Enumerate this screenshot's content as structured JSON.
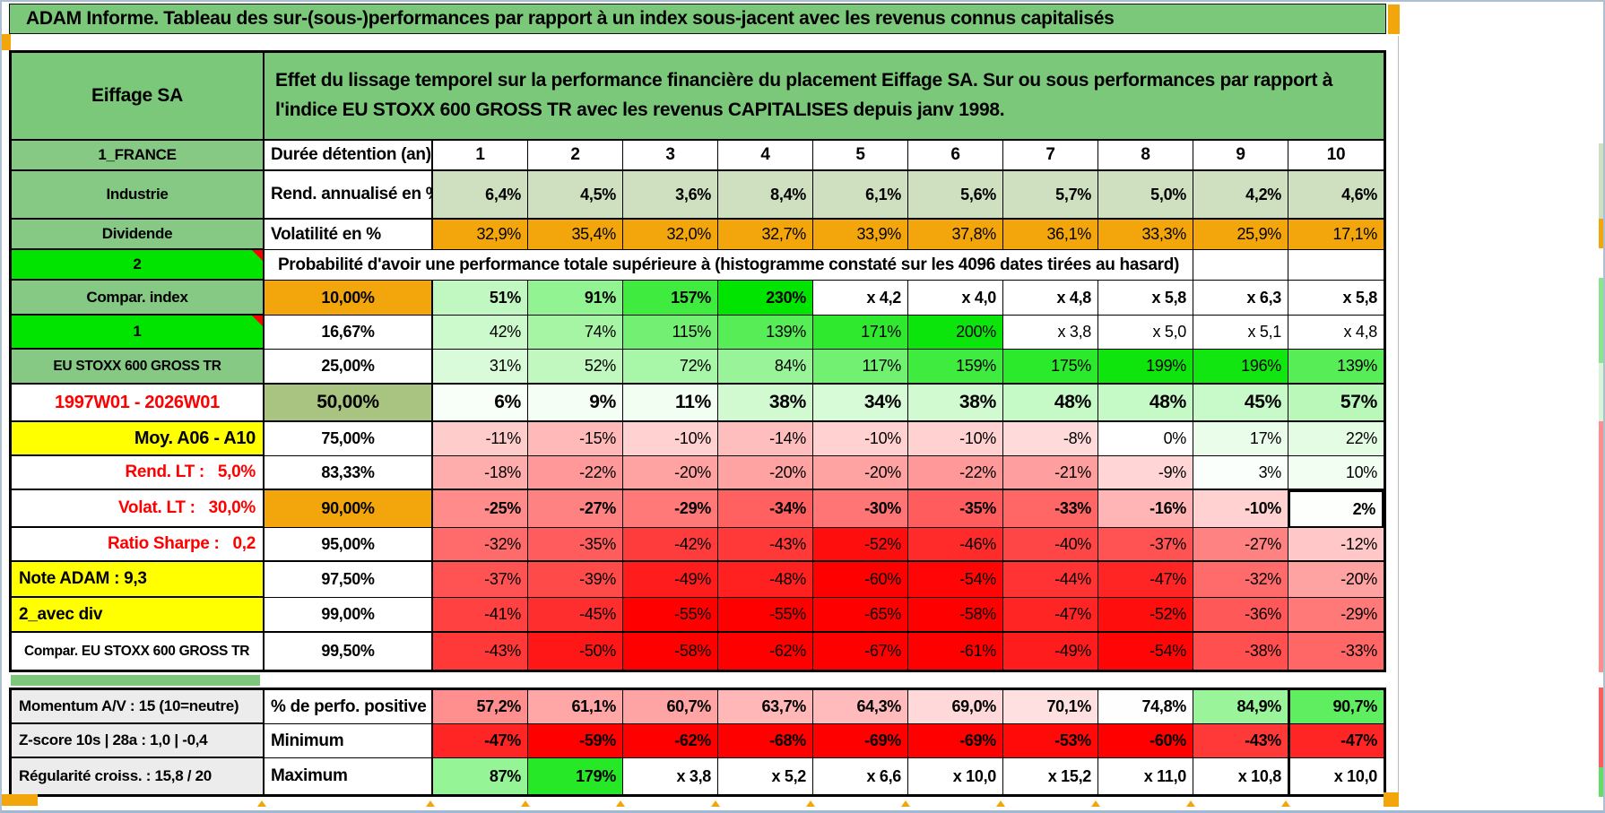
{
  "window": {
    "title": "ADAM Informe. Tableau des sur-(sous-)performances par rapport à un index sous-jacent avec les revenus connus capitalisés"
  },
  "header": {
    "security": "Eiffage SA",
    "description": "Effet du lissage temporel sur la performance financière du placement Eiffage SA. Sur ou sous performances par rapport à l'indice EU STOXX 600 GROSS TR avec les revenus CAPITALISES depuis janv 1998."
  },
  "colors": {
    "title_green": "#7bc87b",
    "label_green": "#85c985",
    "bright_green": "#00e400",
    "olive": "#a9c480",
    "sage": "#cfe0c0",
    "orange": "#f2a60b",
    "yellow": "#ffff00",
    "gray_label": "#ececec",
    "red_text": "#ff0000"
  },
  "table": {
    "duration_label": "Durée détention (an)",
    "durations": [
      "1",
      "2",
      "3",
      "4",
      "5",
      "6",
      "7",
      "8",
      "9",
      "10"
    ],
    "rows": [
      {
        "type": "durations",
        "left": {
          "text": "1_FRANCE"
        },
        "mid": {
          "text": "Durée détention (an)",
          "align": "left"
        }
      },
      {
        "left": {
          "text": "Industrie"
        },
        "mid": {
          "text": "Rend. annualisé en %",
          "align": "left"
        },
        "fill": "sage",
        "bold": true,
        "cells": [
          "6,4%",
          "4,5%",
          "3,6%",
          "8,4%",
          "6,1%",
          "5,6%",
          "5,7%",
          "5,0%",
          "4,2%",
          "4,6%"
        ]
      },
      {
        "left": {
          "text": "Dividende"
        },
        "mid": {
          "text": "Volatilité en %",
          "align": "left"
        },
        "fill": "orange",
        "cells": [
          "32,9%",
          "35,4%",
          "32,0%",
          "32,7%",
          "33,9%",
          "37,8%",
          "36,1%",
          "33,3%",
          "25,9%",
          "17,1%"
        ]
      },
      {
        "type": "span",
        "left": {
          "text": "2",
          "bg": "bright",
          "corner": true
        },
        "span": "Probabilité d'avoir une performance totale supérieure à (histogramme constaté sur les 4096 dates tirées au hasard)"
      },
      {
        "left": {
          "text": "Compar. index"
        },
        "mid": {
          "text": "10,00%",
          "bg": "orange"
        },
        "bold": true,
        "cells": [
          "51%",
          "91%",
          "157%",
          "230%",
          "x 4,2",
          "x 4,0",
          "x 4,8",
          "x 5,8",
          "x 6,3",
          "x 5,8"
        ]
      },
      {
        "left": {
          "text": "1",
          "bg": "bright",
          "corner": true
        },
        "mid": {
          "text": "16,67%"
        },
        "cells": [
          "42%",
          "74%",
          "115%",
          "139%",
          "171%",
          "200%",
          "x 3,8",
          "x 5,0",
          "x 5,1",
          "x 4,8"
        ]
      },
      {
        "left": {
          "text": "EU STOXX 600 GROSS TR",
          "small": true
        },
        "mid": {
          "text": "25,00%"
        },
        "cells": [
          "31%",
          "52%",
          "72%",
          "84%",
          "117%",
          "159%",
          "175%",
          "199%",
          "196%",
          "139%"
        ]
      },
      {
        "left": {
          "text": "1997W01 - 2026W01",
          "fg": "red",
          "size": 20
        },
        "mid": {
          "text": "50,00%",
          "bg": "olive",
          "size": 21
        },
        "bold": true,
        "size": 21,
        "cells": [
          "6%",
          "9%",
          "11%",
          "38%",
          "34%",
          "38%",
          "48%",
          "48%",
          "45%",
          "57%"
        ]
      },
      {
        "left": {
          "text": "Moy. A06 - A10",
          "bg": "yellow",
          "align": "right",
          "size": 20
        },
        "mid": {
          "text": "75,00%"
        },
        "cells": [
          "-11%",
          "-15%",
          "-10%",
          "-14%",
          "-10%",
          "-10%",
          "-8%",
          "0%",
          "17%",
          "22%"
        ]
      },
      {
        "left": {
          "text": "Rend. LT :   5,0%",
          "fg": "red",
          "align": "right",
          "size": 19
        },
        "mid": {
          "text": "83,33%"
        },
        "cells": [
          "-18%",
          "-22%",
          "-20%",
          "-20%",
          "-20%",
          "-22%",
          "-21%",
          "-9%",
          "3%",
          "10%"
        ]
      },
      {
        "left": {
          "text": "Volat. LT :   30,0%",
          "fg": "red",
          "align": "right",
          "size": 19
        },
        "mid": {
          "text": "90,00%",
          "bg": "orange"
        },
        "bold": true,
        "box_col": 9,
        "cells": [
          "-25%",
          "-27%",
          "-29%",
          "-34%",
          "-30%",
          "-35%",
          "-33%",
          "-16%",
          "-10%",
          "2%"
        ]
      },
      {
        "left": {
          "text": "Ratio Sharpe :   0,2",
          "fg": "red",
          "align": "right",
          "size": 19
        },
        "mid": {
          "text": "95,00%"
        },
        "cells": [
          "-32%",
          "-35%",
          "-42%",
          "-43%",
          "-52%",
          "-46%",
          "-40%",
          "-37%",
          "-27%",
          "-12%"
        ]
      },
      {
        "left": {
          "text": "Note ADAM : 9,3",
          "bg": "yellow",
          "align": "left",
          "size": 19
        },
        "mid": {
          "text": "97,50%"
        },
        "cells": [
          "-37%",
          "-39%",
          "-49%",
          "-48%",
          "-60%",
          "-54%",
          "-44%",
          "-47%",
          "-32%",
          "-20%"
        ]
      },
      {
        "left": {
          "text": "2_avec div",
          "bg": "yellow",
          "align": "left",
          "size": 19
        },
        "mid": {
          "text": "99,00%"
        },
        "cells": [
          "-41%",
          "-45%",
          "-55%",
          "-55%",
          "-65%",
          "-58%",
          "-47%",
          "-52%",
          "-36%",
          "-29%"
        ]
      },
      {
        "left": {
          "text": "Compar. EU STOXX 600 GROSS TR",
          "align": "left",
          "small": true
        },
        "mid": {
          "text": "99,50%"
        },
        "cells": [
          "-43%",
          "-50%",
          "-58%",
          "-62%",
          "-67%",
          "-61%",
          "-49%",
          "-54%",
          "-38%",
          "-33%"
        ]
      }
    ]
  },
  "footer": {
    "rows": [
      {
        "left": "Momentum A/V : 15 (10=neutre)",
        "mid": "% de perfo. positive",
        "scale": "center75",
        "cells": [
          "57,2%",
          "61,1%",
          "60,7%",
          "63,7%",
          "64,3%",
          "69,0%",
          "70,1%",
          "74,8%",
          "84,9%",
          "90,7%"
        ]
      },
      {
        "left": "Z-score 10s | 28a : 1,0 | -0,4",
        "mid": "Minimum",
        "cells": [
          "-47%",
          "-59%",
          "-62%",
          "-68%",
          "-69%",
          "-69%",
          "-53%",
          "-60%",
          "-43%",
          "-47%"
        ]
      },
      {
        "left": "Régularité croiss. : 15,8 / 20",
        "mid": "Maximum",
        "cells": [
          "87%",
          "179%",
          "x 3,8",
          "x 5,2",
          "x 6,6",
          "x 10,0",
          "x 15,2",
          "x 11,0",
          "x 10,8",
          "x 10,0"
        ]
      }
    ]
  }
}
